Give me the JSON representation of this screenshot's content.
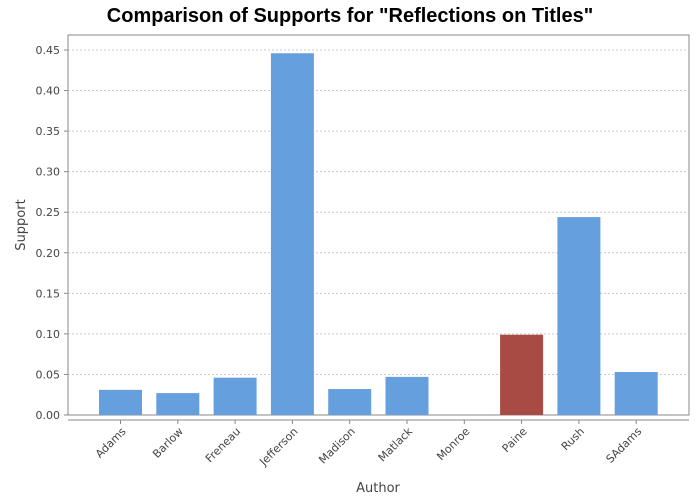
{
  "chart_data": {
    "type": "bar",
    "title": "Comparison of Supports for \"Reflections on Titles\"",
    "xlabel": "Author",
    "ylabel": "Support",
    "categories": [
      "Adams",
      "Barlow",
      "Freneau",
      "Jefferson",
      "Madison",
      "Matlack",
      "Monroe",
      "Paine",
      "Rush",
      "SAdams"
    ],
    "values": [
      0.031,
      0.027,
      0.046,
      0.446,
      0.032,
      0.047,
      0.0,
      0.099,
      0.244,
      0.053
    ],
    "highlight": "Paine",
    "ylim": [
      0,
      0.47
    ],
    "yticks": [
      "0.00",
      "0.05",
      "0.10",
      "0.15",
      "0.20",
      "0.25",
      "0.30",
      "0.35",
      "0.40",
      "0.45"
    ],
    "grid": true,
    "colors": {
      "bar": "#659fdd",
      "highlight": "#a84b45",
      "grid": "#c8c8c8",
      "axis": "#888888"
    }
  }
}
